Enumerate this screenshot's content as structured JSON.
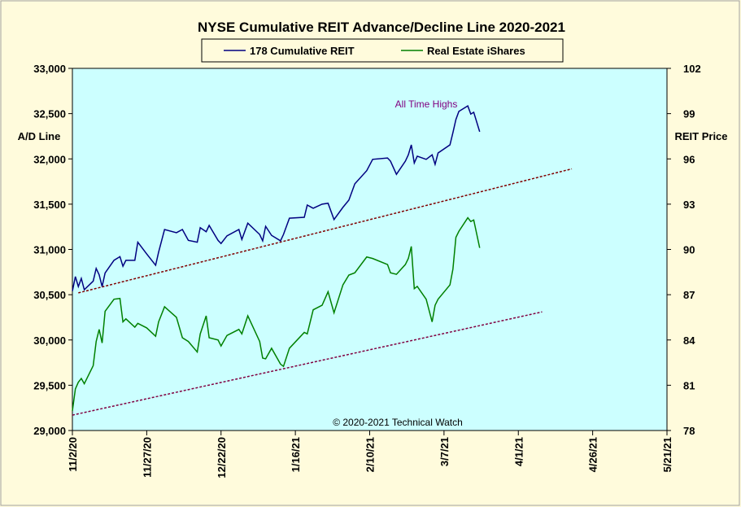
{
  "chart_data": {
    "type": "line",
    "title": "NYSE Cumulative  REIT Advance/Decline Line 2020-2021",
    "ylabel": "A/D Line",
    "y2label": "REIT Price",
    "annotations": [
      "All Time Highs",
      "© 2020-2021 Technical Watch"
    ],
    "x": [
      "2020-11-02",
      "2020-11-03",
      "2020-11-04",
      "2020-11-05",
      "2020-11-06",
      "2020-11-09",
      "2020-11-10",
      "2020-11-11",
      "2020-11-12",
      "2020-11-13",
      "2020-11-16",
      "2020-11-18",
      "2020-11-19",
      "2020-11-20",
      "2020-11-23",
      "2020-11-24",
      "2020-11-27",
      "2020-11-30",
      "2020-12-01",
      "2020-12-03",
      "2020-12-07",
      "2020-12-09",
      "2020-12-11",
      "2020-12-14",
      "2020-12-15",
      "2020-12-17",
      "2020-12-18",
      "2020-12-21",
      "2020-12-22",
      "2020-12-24",
      "2020-12-28",
      "2020-12-29",
      "2020-12-31",
      "2021-01-04",
      "2021-01-05",
      "2021-01-06",
      "2021-01-08",
      "2021-01-11",
      "2021-01-12",
      "2021-01-14",
      "2021-01-19",
      "2021-01-20",
      "2021-01-22",
      "2021-01-25",
      "2021-01-27",
      "2021-01-29",
      "2021-02-01",
      "2021-02-03",
      "2021-02-05",
      "2021-02-09",
      "2021-02-11",
      "2021-02-16",
      "2021-02-17",
      "2021-02-19",
      "2021-02-22",
      "2021-02-23",
      "2021-02-24",
      "2021-02-25",
      "2021-02-26",
      "2021-03-01",
      "2021-03-03",
      "2021-03-04",
      "2021-03-05",
      "2021-03-09",
      "2021-03-10",
      "2021-03-11",
      "2021-03-12",
      "2021-03-15",
      "2021-03-16",
      "2021-03-17",
      "2021-03-19"
    ],
    "series": [
      {
        "name": "178 Cumulative REIT",
        "color": "#000080",
        "axis": "y",
        "values": [
          30540,
          30700,
          30590,
          30680,
          30555,
          30650,
          30790,
          30720,
          30590,
          30740,
          30880,
          30920,
          30815,
          30880,
          30880,
          31080,
          30950,
          30825,
          30970,
          31220,
          31185,
          31220,
          31100,
          31080,
          31240,
          31195,
          31265,
          31100,
          31065,
          31150,
          31220,
          31110,
          31290,
          31165,
          31095,
          31255,
          31155,
          31095,
          31165,
          31345,
          31355,
          31490,
          31455,
          31500,
          31510,
          31330,
          31465,
          31545,
          31725,
          31870,
          31995,
          32010,
          31975,
          31830,
          31975,
          32045,
          32155,
          31955,
          32030,
          31995,
          32045,
          31940,
          32065,
          32155,
          32290,
          32435,
          32525,
          32585,
          32495,
          32515,
          32300
        ]
      },
      {
        "name": "Real Estate iShares",
        "color": "#008000",
        "axis": "y2",
        "values": [
          79.3,
          80.75,
          81.2,
          81.45,
          81.1,
          82.3,
          83.9,
          84.7,
          83.8,
          85.9,
          86.7,
          86.75,
          85.2,
          85.4,
          84.85,
          85.1,
          84.8,
          84.25,
          85.2,
          86.2,
          85.5,
          84.15,
          83.9,
          83.2,
          84.4,
          85.6,
          84.15,
          84.0,
          83.6,
          84.3,
          84.7,
          84.4,
          85.6,
          83.9,
          82.8,
          82.75,
          83.45,
          82.4,
          82.25,
          83.45,
          84.5,
          84.4,
          86.0,
          86.3,
          87.2,
          85.8,
          87.65,
          88.3,
          88.45,
          89.5,
          89.4,
          89.0,
          88.45,
          88.35,
          89.0,
          89.4,
          90.2,
          87.4,
          87.55,
          86.7,
          85.2,
          86.3,
          86.7,
          87.65,
          88.7,
          90.8,
          91.2,
          92.1,
          91.85,
          91.95,
          90.1
        ]
      }
    ],
    "trend_lines": [
      {
        "color": "#800000",
        "x": [
          "2020-11-04",
          "2021-04-19"
        ],
        "values": [
          30520,
          31890
        ]
      },
      {
        "color": "#800040",
        "x": [
          "2020-11-02",
          "2021-04-09"
        ],
        "values": [
          29170,
          30310
        ]
      }
    ],
    "xlim": [
      "2020-11-02",
      "2021-05-21"
    ],
    "xticks": [
      {
        "value": "2020-11-02",
        "label": "11/2/20"
      },
      {
        "value": "2020-11-27",
        "label": "11/27/20"
      },
      {
        "value": "2020-12-22",
        "label": "12/22/20"
      },
      {
        "value": "2021-01-16",
        "label": "1/16/21"
      },
      {
        "value": "2021-02-10",
        "label": "2/10/21"
      },
      {
        "value": "2021-03-07",
        "label": "3/7/21"
      },
      {
        "value": "2021-04-01",
        "label": "4/1/21"
      },
      {
        "value": "2021-04-26",
        "label": "4/26/21"
      },
      {
        "value": "2021-05-21",
        "label": "5/21/21"
      }
    ],
    "ylim": [
      29000,
      33000
    ],
    "yticks": [
      {
        "value": 29000,
        "label": "29,000"
      },
      {
        "value": 29500,
        "label": "29,500"
      },
      {
        "value": 30000,
        "label": "30,000"
      },
      {
        "value": 30500,
        "label": "30,500"
      },
      {
        "value": 31000,
        "label": "31,000"
      },
      {
        "value": 31500,
        "label": "31,500"
      },
      {
        "value": 32000,
        "label": "32,000"
      },
      {
        "value": 32500,
        "label": "32,500"
      },
      {
        "value": 33000,
        "label": "33,000"
      }
    ],
    "y2lim": [
      78,
      102
    ],
    "y2ticks": [
      78,
      81,
      84,
      87,
      90,
      93,
      96,
      99,
      102
    ],
    "plot_background": "#ccffff"
  }
}
